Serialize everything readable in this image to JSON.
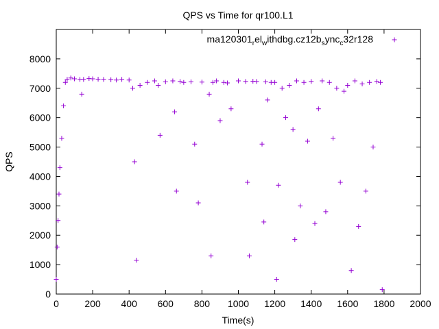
{
  "chart_data": {
    "type": "scatter",
    "title": "QPS vs Time for qr100.L1",
    "xlabel": "Time(s)",
    "ylabel": "QPS",
    "xlim": [
      0,
      2000
    ],
    "ylim": [
      0,
      9000
    ],
    "xticks": [
      0,
      200,
      400,
      600,
      800,
      1000,
      1200,
      1400,
      1600,
      1800,
      2000
    ],
    "yticks": [
      0,
      1000,
      2000,
      3000,
      4000,
      5000,
      6000,
      7000,
      8000
    ],
    "xtick_labels": [
      "0",
      "200",
      "400",
      "600",
      "800",
      "1000",
      "1200",
      "1400",
      "1600",
      "1800",
      "2000"
    ],
    "ytick_labels": [
      "0",
      "1000",
      "2000",
      "3000",
      "4000",
      "5000",
      "6000",
      "7000",
      "8000"
    ],
    "grid": false,
    "legend_position": "top-right",
    "series": [
      {
        "name": "ma120301_rel_withdbg.cz12b_sync_c32r128",
        "legend_parts": [
          {
            "text": "ma120301",
            "shift": "normal"
          },
          {
            "text": "r",
            "shift": "sub"
          },
          {
            "text": "el",
            "shift": "normal"
          },
          {
            "text": "w",
            "shift": "sub"
          },
          {
            "text": "ithdbg.cz12b",
            "shift": "normal"
          },
          {
            "text": "s",
            "shift": "sub"
          },
          {
            "text": "ync",
            "shift": "normal"
          },
          {
            "text": "c",
            "shift": "sub"
          },
          {
            "text": "32r128",
            "shift": "normal"
          }
        ],
        "marker": "+",
        "color": "#9400d3",
        "x": [
          0,
          5,
          10,
          15,
          20,
          30,
          40,
          50,
          60,
          80,
          100,
          130,
          140,
          150,
          180,
          200,
          230,
          260,
          300,
          330,
          360,
          400,
          420,
          430,
          440,
          460,
          500,
          540,
          560,
          570,
          600,
          640,
          650,
          660,
          680,
          700,
          740,
          760,
          780,
          800,
          840,
          850,
          860,
          880,
          900,
          920,
          940,
          960,
          1000,
          1040,
          1050,
          1060,
          1080,
          1100,
          1130,
          1140,
          1150,
          1160,
          1180,
          1200,
          1210,
          1220,
          1240,
          1260,
          1280,
          1300,
          1310,
          1320,
          1340,
          1360,
          1380,
          1400,
          1420,
          1440,
          1460,
          1480,
          1500,
          1520,
          1540,
          1560,
          1580,
          1600,
          1620,
          1640,
          1660,
          1680,
          1700,
          1720,
          1740,
          1760,
          1780,
          1790
        ],
        "y": [
          500,
          1600,
          2500,
          3400,
          4300,
          5300,
          6400,
          7200,
          7300,
          7350,
          7320,
          7300,
          6800,
          7300,
          7330,
          7320,
          7310,
          7300,
          7290,
          7280,
          7300,
          7280,
          7000,
          4500,
          1150,
          7100,
          7200,
          7250,
          7100,
          5400,
          7220,
          7250,
          6200,
          3500,
          7230,
          7200,
          7220,
          5100,
          3100,
          7210,
          6800,
          1300,
          7200,
          7250,
          5900,
          7200,
          7180,
          6300,
          7250,
          7230,
          3800,
          1300,
          7240,
          7230,
          5100,
          2450,
          7220,
          6600,
          7200,
          7200,
          500,
          3700,
          7000,
          6000,
          7100,
          5600,
          1850,
          7250,
          3000,
          7200,
          5200,
          7230,
          2400,
          6300,
          7250,
          2800,
          7200,
          5300,
          7000,
          3800,
          6900,
          7100,
          800,
          7250,
          2300,
          7150,
          3500,
          7200,
          5000,
          7230,
          7200,
          150
        ]
      }
    ]
  }
}
